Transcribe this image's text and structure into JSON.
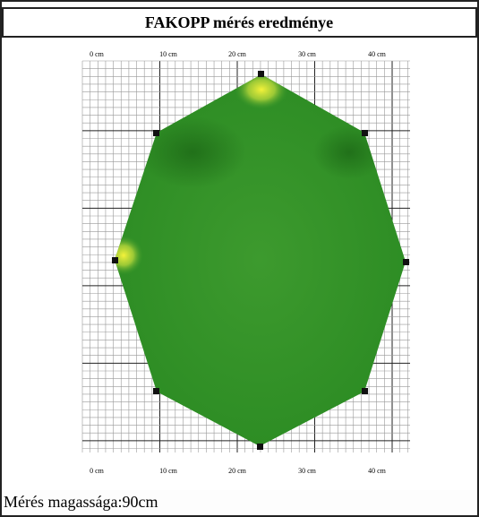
{
  "header": {
    "title": "FAKOPP mérés eredménye"
  },
  "axis": {
    "top_labels": [
      "0 cm",
      "10 cm",
      "20 cm",
      "30 cm",
      "40 cm"
    ],
    "bottom_labels": [
      "0 cm",
      "10 cm",
      "20 cm",
      "30 cm",
      "40 cm"
    ]
  },
  "footer": {
    "text": "Mérés magassága:90cm"
  }
}
